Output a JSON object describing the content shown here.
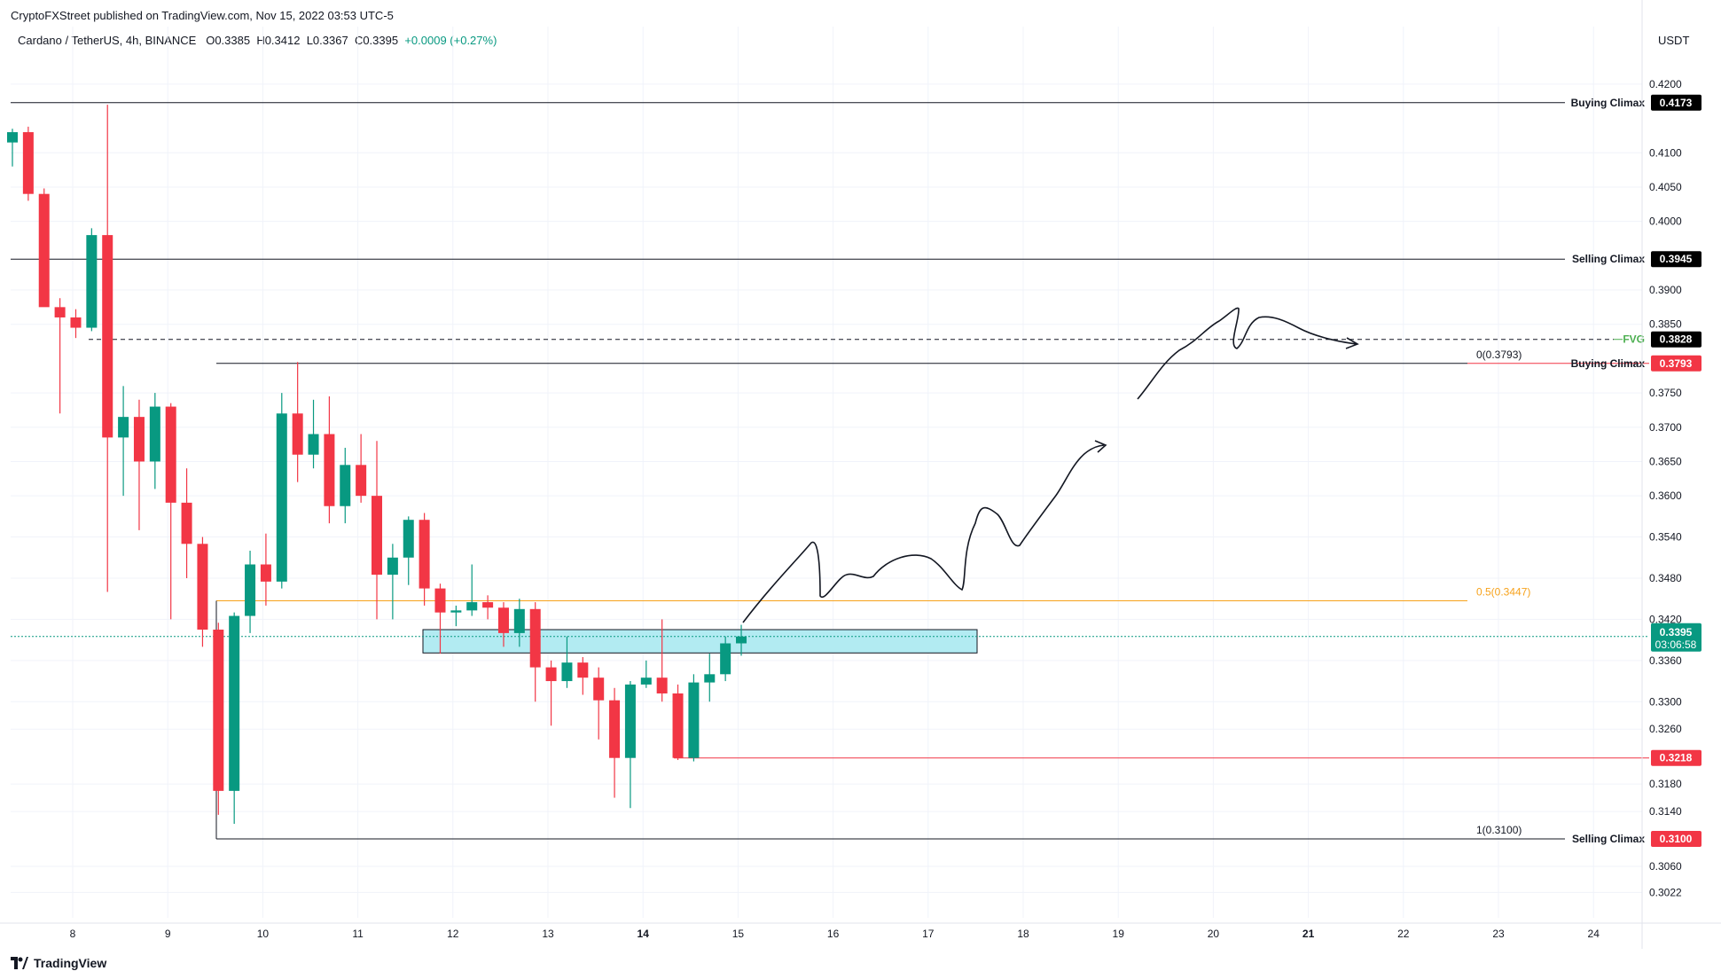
{
  "header": {
    "caption": "CryptoFXStreet published on TradingView.com, Nov 15, 2022 03:53 UTC-5",
    "symbol": "Cardano / TetherUS, 4h, BINANCE",
    "o": "O0.3385",
    "h": "H0.3412",
    "l": "L0.3367",
    "c": "C0.3395",
    "chg": "+0.0009 (+0.27%)",
    "currency": "USDT"
  },
  "footer": {
    "brand": "TradingView"
  },
  "colors": {
    "up": "#089981",
    "down": "#f23645",
    "fib": "#f7a21b",
    "fvg": "#4caf50",
    "box": "#b2ebf2"
  },
  "chart_data": {
    "type": "candlestick",
    "title": "Cardano / TetherUS, 4h, BINANCE",
    "ylim": [
      0.2985,
      0.4258
    ],
    "y_ticks": [
      "0.4200",
      "0.4100",
      "0.4050",
      "0.4000",
      "0.3900",
      "0.3850",
      "0.3750",
      "0.3700",
      "0.3650",
      "0.3600",
      "0.3540",
      "0.3480",
      "0.3420",
      "0.3360",
      "0.3300",
      "0.3260",
      "0.3180",
      "0.3140",
      "0.3060",
      "0.3022"
    ],
    "x_ticks": [
      "8",
      "9",
      "10",
      "11",
      "12",
      "13",
      "14",
      "15",
      "16",
      "17",
      "18",
      "19",
      "20",
      "21",
      "22",
      "23",
      "24"
    ],
    "bold_x_ticks": [
      "14",
      "21"
    ],
    "candles": [
      {
        "o": 0.4115,
        "h": 0.4135,
        "l": 0.408,
        "c": 0.413
      },
      {
        "o": 0.413,
        "h": 0.4138,
        "l": 0.403,
        "c": 0.404
      },
      {
        "o": 0.404,
        "h": 0.4048,
        "l": 0.388,
        "c": 0.3875
      },
      {
        "o": 0.3875,
        "h": 0.3888,
        "l": 0.372,
        "c": 0.386
      },
      {
        "o": 0.386,
        "h": 0.3872,
        "l": 0.383,
        "c": 0.3845
      },
      {
        "o": 0.3845,
        "h": 0.399,
        "l": 0.384,
        "c": 0.398
      },
      {
        "o": 0.398,
        "h": 0.417,
        "l": 0.346,
        "c": 0.3685
      },
      {
        "o": 0.3685,
        "h": 0.376,
        "l": 0.36,
        "c": 0.3715
      },
      {
        "o": 0.3715,
        "h": 0.374,
        "l": 0.355,
        "c": 0.365
      },
      {
        "o": 0.365,
        "h": 0.375,
        "l": 0.361,
        "c": 0.373
      },
      {
        "o": 0.373,
        "h": 0.3735,
        "l": 0.342,
        "c": 0.359
      },
      {
        "o": 0.359,
        "h": 0.364,
        "l": 0.348,
        "c": 0.353
      },
      {
        "o": 0.353,
        "h": 0.354,
        "l": 0.338,
        "c": 0.3405
      },
      {
        "o": 0.3405,
        "h": 0.3415,
        "l": 0.3135,
        "c": 0.317
      },
      {
        "o": 0.317,
        "h": 0.343,
        "l": 0.3122,
        "c": 0.3425
      },
      {
        "o": 0.3425,
        "h": 0.352,
        "l": 0.34,
        "c": 0.35
      },
      {
        "o": 0.35,
        "h": 0.3545,
        "l": 0.344,
        "c": 0.3475
      },
      {
        "o": 0.3475,
        "h": 0.375,
        "l": 0.3465,
        "c": 0.372
      },
      {
        "o": 0.372,
        "h": 0.3795,
        "l": 0.362,
        "c": 0.366
      },
      {
        "o": 0.366,
        "h": 0.374,
        "l": 0.364,
        "c": 0.369
      },
      {
        "o": 0.369,
        "h": 0.3745,
        "l": 0.356,
        "c": 0.3585
      },
      {
        "o": 0.3585,
        "h": 0.367,
        "l": 0.356,
        "c": 0.3645
      },
      {
        "o": 0.3645,
        "h": 0.369,
        "l": 0.359,
        "c": 0.36
      },
      {
        "o": 0.36,
        "h": 0.368,
        "l": 0.342,
        "c": 0.3485
      },
      {
        "o": 0.3485,
        "h": 0.353,
        "l": 0.342,
        "c": 0.351
      },
      {
        "o": 0.351,
        "h": 0.357,
        "l": 0.347,
        "c": 0.3565
      },
      {
        "o": 0.3565,
        "h": 0.3575,
        "l": 0.344,
        "c": 0.3465
      },
      {
        "o": 0.3465,
        "h": 0.3472,
        "l": 0.337,
        "c": 0.343
      },
      {
        "o": 0.343,
        "h": 0.344,
        "l": 0.341,
        "c": 0.3433
      },
      {
        "o": 0.3433,
        "h": 0.35,
        "l": 0.3425,
        "c": 0.3445
      },
      {
        "o": 0.3445,
        "h": 0.3455,
        "l": 0.342,
        "c": 0.3437
      },
      {
        "o": 0.3437,
        "h": 0.3445,
        "l": 0.338,
        "c": 0.34
      },
      {
        "o": 0.34,
        "h": 0.345,
        "l": 0.338,
        "c": 0.3435
      },
      {
        "o": 0.3435,
        "h": 0.3445,
        "l": 0.33,
        "c": 0.335
      },
      {
        "o": 0.335,
        "h": 0.336,
        "l": 0.3265,
        "c": 0.333
      },
      {
        "o": 0.333,
        "h": 0.3395,
        "l": 0.332,
        "c": 0.3357
      },
      {
        "o": 0.3357,
        "h": 0.3365,
        "l": 0.331,
        "c": 0.3335
      },
      {
        "o": 0.3335,
        "h": 0.335,
        "l": 0.3245,
        "c": 0.3302
      },
      {
        "o": 0.3302,
        "h": 0.332,
        "l": 0.316,
        "c": 0.3218
      },
      {
        "o": 0.3218,
        "h": 0.333,
        "l": 0.3145,
        "c": 0.3325
      },
      {
        "o": 0.3325,
        "h": 0.336,
        "l": 0.332,
        "c": 0.3335
      },
      {
        "o": 0.3335,
        "h": 0.342,
        "l": 0.33,
        "c": 0.3312
      },
      {
        "o": 0.3312,
        "h": 0.3325,
        "l": 0.3215,
        "c": 0.3218
      },
      {
        "o": 0.3218,
        "h": 0.334,
        "l": 0.3213,
        "c": 0.3328
      },
      {
        "o": 0.3328,
        "h": 0.337,
        "l": 0.33,
        "c": 0.334
      },
      {
        "o": 0.334,
        "h": 0.3395,
        "l": 0.333,
        "c": 0.3385
      },
      {
        "o": 0.3385,
        "h": 0.3412,
        "l": 0.3367,
        "c": 0.3395
      }
    ],
    "levels": [
      {
        "name": "Buying Climax",
        "value": "0.4173",
        "badge_color": "#000000"
      },
      {
        "name": "Selling Climax",
        "value": "0.3945",
        "badge_color": "#000000"
      },
      {
        "name": "FVG",
        "value": "0.3828",
        "badge_color": "#000000",
        "dashed": true
      },
      {
        "name": "Buying Climax",
        "value": "0.3793",
        "badge_color": "#f23645"
      },
      {
        "name": "",
        "value": "0.3218",
        "badge_color": "#f23645"
      },
      {
        "name": "Selling Climax",
        "value": "0.3100",
        "badge_color": "#f23645"
      }
    ],
    "fib_labels": [
      {
        "text": "0(0.3793)",
        "value": 0.3793
      },
      {
        "text": "0.5(0.3447)",
        "value": 0.3447
      },
      {
        "text": "1(0.3100)",
        "value": 0.31
      }
    ],
    "price_line": {
      "value": "0.3395",
      "countdown": "03:06:58"
    },
    "zone": {
      "top": 0.3405,
      "bottom": 0.3371
    }
  }
}
